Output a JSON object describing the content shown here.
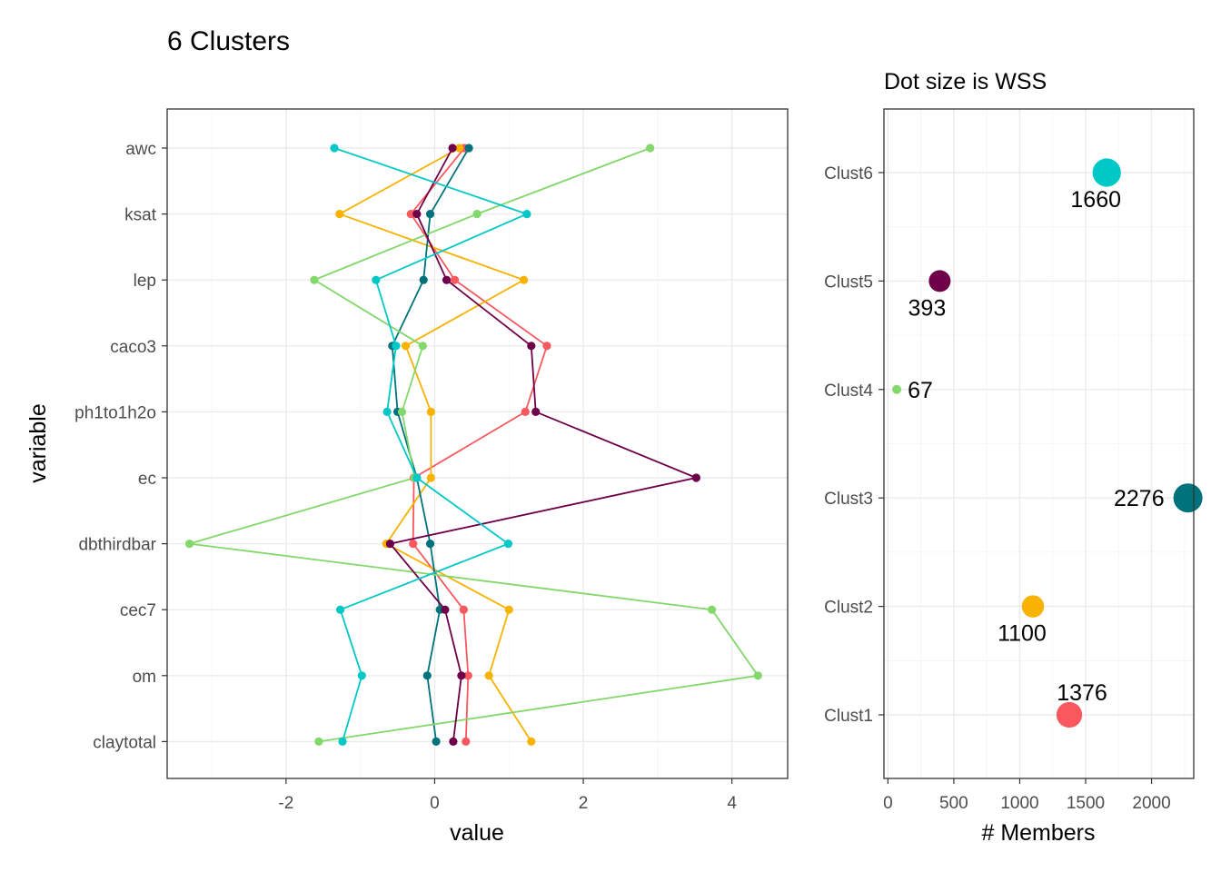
{
  "title": "6 Clusters",
  "chart_data": [
    {
      "type": "line",
      "xlabel": "value",
      "ylabel": "variable",
      "xlim": [
        -3.6,
        4.75
      ],
      "xticks": [
        -2,
        0,
        2,
        4
      ],
      "xtick_labels": [
        "-2",
        "0",
        "2",
        "4"
      ],
      "categories": [
        "awc",
        "ksat",
        "lep",
        "caco3",
        "ph1to1h2o",
        "ec",
        "dbthirdbar",
        "cec7",
        "om",
        "claytotal"
      ],
      "grid": true,
      "series": [
        {
          "color": "#F8585E",
          "values": [
            0.4,
            -0.32,
            0.27,
            1.51,
            1.22,
            -0.28,
            -0.29,
            0.39,
            0.45,
            0.42
          ]
        },
        {
          "color": "#F8B200",
          "values": [
            0.33,
            -1.28,
            1.2,
            -0.39,
            -0.05,
            -0.05,
            -0.65,
            1.0,
            0.73,
            1.3
          ]
        },
        {
          "color": "#00727B",
          "values": [
            0.46,
            -0.06,
            -0.15,
            -0.57,
            -0.5,
            -0.24,
            -0.06,
            0.07,
            -0.1,
            0.02
          ]
        },
        {
          "color": "#82D86A",
          "values": [
            2.9,
            0.57,
            -1.62,
            -0.16,
            -0.44,
            -0.27,
            -3.3,
            3.73,
            4.35,
            -1.56
          ]
        },
        {
          "color": "#6E0049",
          "values": [
            0.24,
            -0.24,
            0.16,
            1.3,
            1.36,
            3.52,
            -0.6,
            0.14,
            0.36,
            0.25
          ]
        },
        {
          "color": "#00C8C6",
          "values": [
            -1.35,
            1.24,
            -0.79,
            -0.52,
            -0.64,
            -0.24,
            0.99,
            -1.27,
            -0.98,
            -1.24
          ]
        }
      ]
    },
    {
      "type": "scatter",
      "title": "Dot size is WSS",
      "xlabel": "# Members",
      "xlim": [
        -30,
        2320
      ],
      "xticks": [
        0,
        500,
        1000,
        1500,
        2000
      ],
      "xtick_labels": [
        "0",
        "500",
        "1000",
        "1500",
        "2000"
      ],
      "categories": [
        "Clust1",
        "Clust2",
        "Clust3",
        "Clust4",
        "Clust5",
        "Clust6"
      ],
      "grid": true,
      "points": [
        {
          "cluster": "Clust1",
          "members": 1376,
          "label": "1376",
          "color": "#F8585E",
          "wss": 0.85
        },
        {
          "cluster": "Clust2",
          "members": 1100,
          "label": "1100",
          "color": "#F8B200",
          "wss": 0.7
        },
        {
          "cluster": "Clust3",
          "members": 2276,
          "label": "2276",
          "color": "#00727B",
          "wss": 1.0
        },
        {
          "cluster": "Clust4",
          "members": 67,
          "label": "67",
          "color": "#82D86A",
          "wss": 0.12
        },
        {
          "cluster": "Clust5",
          "members": 393,
          "label": "393",
          "color": "#6E0049",
          "wss": 0.68
        },
        {
          "cluster": "Clust6",
          "members": 1660,
          "label": "1660",
          "color": "#00C8C6",
          "wss": 0.97
        }
      ]
    }
  ]
}
